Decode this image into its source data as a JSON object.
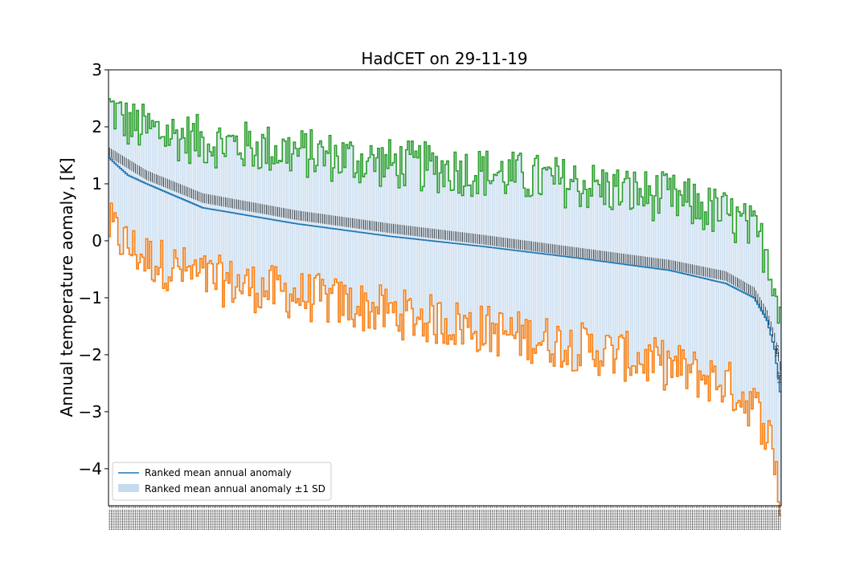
{
  "chart_data": {
    "type": "line",
    "title": "HadCET on 29-11-19",
    "xlabel": "",
    "ylabel": "Annual temperature aomaly, [K]",
    "ylim": [
      -4.65,
      3.0
    ],
    "yticks": [
      3,
      2,
      1,
      0,
      -1,
      -2,
      -3,
      -4
    ],
    "ytick_labels": [
      "3",
      "2",
      "1",
      "0",
      "−1",
      "−2",
      "−3",
      "−4"
    ],
    "n_years": 360,
    "grid": false,
    "legend_position": "lower-left",
    "series": [
      {
        "name": "Ranked mean annual anomaly",
        "color": "#1f77b4",
        "kind": "line",
        "x": [
          0,
          10,
          20,
          50,
          100,
          150,
          200,
          250,
          300,
          330,
          345,
          352,
          356,
          359
        ],
        "y": [
          1.45,
          1.15,
          1.0,
          0.58,
          0.3,
          0.08,
          -0.1,
          -0.3,
          -0.52,
          -0.75,
          -1.0,
          -1.4,
          -1.9,
          -2.65
        ]
      },
      {
        "name": "Ranked mean annual anomaly ±1 SD",
        "color": "#c6dbef",
        "kind": "band",
        "x": [
          0,
          359
        ],
        "y": [
          0,
          0
        ]
      },
      {
        "color": "#2ca02c",
        "kind": "step",
        "role": "upper",
        "x": [
          0,
          10,
          20,
          50,
          100,
          150,
          200,
          250,
          300,
          330,
          345,
          352,
          356,
          359
        ],
        "y": [
          2.35,
          2.05,
          1.95,
          1.75,
          1.55,
          1.35,
          1.2,
          1.0,
          0.75,
          0.45,
          0.15,
          -0.2,
          -0.75,
          -1.15
        ]
      },
      {
        "color": "#ff7f0e",
        "kind": "step",
        "role": "lower",
        "x": [
          0,
          10,
          20,
          50,
          100,
          150,
          200,
          250,
          300,
          330,
          345,
          352,
          356,
          359
        ],
        "y": [
          0.25,
          -0.1,
          -0.3,
          -0.65,
          -0.95,
          -1.25,
          -1.55,
          -1.85,
          -2.2,
          -2.5,
          -2.9,
          -3.3,
          -3.8,
          -4.6
        ]
      },
      {
        "color": "#000000",
        "kind": "labels",
        "role": "year-labels",
        "x": [
          0,
          10,
          20,
          50,
          100,
          150,
          200,
          250,
          300,
          330,
          345,
          352,
          356,
          359
        ],
        "y": [
          1.55,
          1.35,
          1.15,
          0.75,
          0.45,
          0.22,
          0.02,
          -0.2,
          -0.42,
          -0.62,
          -0.9,
          -1.3,
          -1.7,
          -2.2
        ]
      }
    ],
    "end_labels": [
      "1695",
      "1740"
    ]
  },
  "legend": {
    "mean_label": "Ranked mean annual anomaly",
    "band_label": "Ranked mean annual anomaly ±1 SD"
  }
}
